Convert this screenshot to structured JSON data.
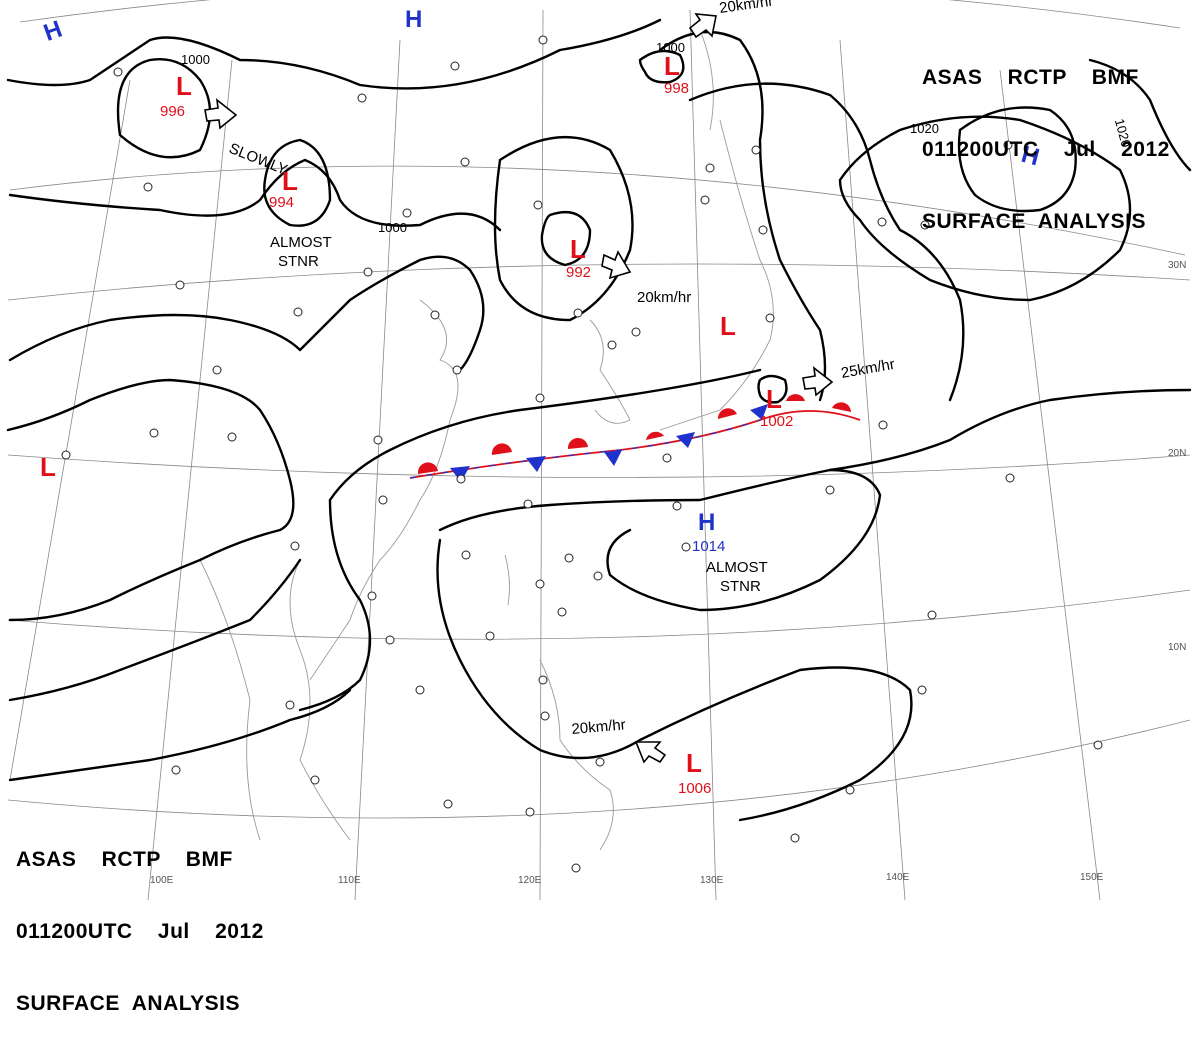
{
  "header": {
    "line1": "ASAS    RCTP    BMF",
    "line2": "011200UTC    Jul    2012",
    "line3": "SURFACE  ANALYSIS"
  },
  "lows": [
    {
      "symbol": "L",
      "pressure": "996"
    },
    {
      "symbol": "L",
      "pressure": "994"
    },
    {
      "symbol": "L",
      "pressure": "992"
    },
    {
      "symbol": "L",
      "pressure": "998"
    },
    {
      "symbol": "L",
      "pressure": "1002"
    },
    {
      "symbol": "L",
      "pressure": "1006"
    },
    {
      "symbol": "L",
      "pressure": ""
    },
    {
      "symbol": "L",
      "pressure": ""
    }
  ],
  "highs": [
    {
      "symbol": "H",
      "pressure": "1014"
    },
    {
      "symbol": "H",
      "pressure": ""
    },
    {
      "symbol": "H",
      "pressure": ""
    },
    {
      "symbol": "H",
      "pressure": ""
    }
  ],
  "isobar_labels": [
    "1000",
    "1000",
    "1000",
    "1020",
    "1020"
  ],
  "motion_notes": [
    "SLOWLY",
    "20km/hr",
    "25km/hr",
    "20km/hr",
    "20km/hr"
  ],
  "stationary_notes": [
    {
      "line1": "ALMOST",
      "line2": "STNR"
    },
    {
      "line1": "ALMOST",
      "line2": "STNR"
    }
  ],
  "longitude_labels": [
    "100E",
    "110E",
    "120E",
    "130E",
    "140E",
    "150E"
  ],
  "latitude_labels": [
    "30N",
    "20N",
    "10N"
  ],
  "colors": {
    "low": "#e0101a",
    "high": "#1f33cc",
    "front_warm": "#e0101a",
    "front_cold": "#1f33cc",
    "isobar": "#000000",
    "grid": "#777777",
    "coast": "#9a9a9a"
  },
  "icons": [
    "front-icon",
    "motion-arrow-icon",
    "station-model-icon"
  ]
}
